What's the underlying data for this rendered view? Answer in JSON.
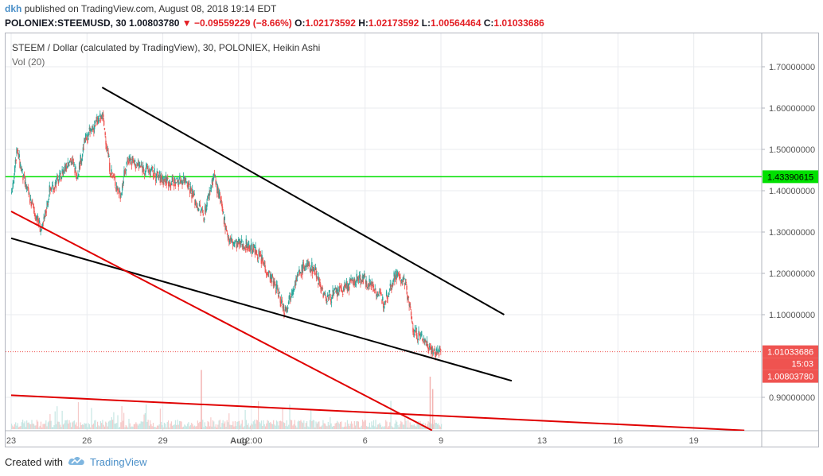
{
  "header": {
    "author": "dkh",
    "published": "published on TradingView.com, August 08, 2018 19:14 EDT",
    "symbol": "POLONIEX:STEEMUSD, 30",
    "last": "1.00803780",
    "change": "−0.09559229 (−8.66%)",
    "o_label": "O:",
    "o_value": "1.02173592",
    "h_label": "H:",
    "h_value": "1.02173592",
    "l_label": "L:",
    "l_value": "1.00564464",
    "c_label": "C:",
    "c_value": "1.01033686"
  },
  "legend": {
    "title": "STEEM / Dollar (calculated by TradingView), 30, POLONIEX, Heikin Ashi",
    "volume": "Vol (20)"
  },
  "footer": {
    "created_with": "Created with",
    "brand": "TradingView"
  },
  "colors": {
    "up": "#26a69a",
    "down": "#ef5350",
    "green_line": "#00e000",
    "red_line": "#e00000",
    "black_line": "#000000"
  },
  "chart_data": {
    "type": "candlestick",
    "style": "Heikin Ashi",
    "interval": "30",
    "ylim": [
      0.82,
      1.78
    ],
    "y_ticks": [
      "1.70000000",
      "1.60000000",
      "1.50000000",
      "1.40000000",
      "1.30000000",
      "1.20000000",
      "1.10000000",
      "0.90000000"
    ],
    "x_ticks": [
      {
        "label": "23",
        "day": 0
      },
      {
        "label": "26",
        "day": 3
      },
      {
        "label": "29",
        "day": 6
      },
      {
        "label": "Aug",
        "day": 9
      },
      {
        "label": "12:00",
        "day": 9.5
      },
      {
        "label": "6",
        "day": 14
      },
      {
        "label": "9",
        "day": 17
      },
      {
        "label": "13",
        "day": 21
      },
      {
        "label": "16",
        "day": 24
      },
      {
        "label": "19",
        "day": 27
      }
    ],
    "price_path": [
      [
        0.0,
        1.39
      ],
      [
        0.2,
        1.5
      ],
      [
        0.5,
        1.42
      ],
      [
        0.9,
        1.35
      ],
      [
        1.2,
        1.3
      ],
      [
        1.5,
        1.4
      ],
      [
        1.9,
        1.43
      ],
      [
        2.3,
        1.48
      ],
      [
        2.6,
        1.44
      ],
      [
        2.9,
        1.52
      ],
      [
        3.3,
        1.56
      ],
      [
        3.6,
        1.58
      ],
      [
        3.9,
        1.45
      ],
      [
        4.3,
        1.39
      ],
      [
        4.6,
        1.48
      ],
      [
        5.0,
        1.46
      ],
      [
        5.4,
        1.45
      ],
      [
        5.9,
        1.43
      ],
      [
        6.4,
        1.42
      ],
      [
        6.9,
        1.43
      ],
      [
        7.3,
        1.37
      ],
      [
        7.6,
        1.34
      ],
      [
        8.0,
        1.44
      ],
      [
        8.3,
        1.36
      ],
      [
        8.6,
        1.28
      ],
      [
        8.9,
        1.27
      ],
      [
        9.3,
        1.27
      ],
      [
        9.7,
        1.25
      ],
      [
        10.0,
        1.22
      ],
      [
        10.5,
        1.16
      ],
      [
        10.8,
        1.11
      ],
      [
        11.2,
        1.18
      ],
      [
        11.6,
        1.22
      ],
      [
        12.0,
        1.21
      ],
      [
        12.4,
        1.14
      ],
      [
        12.8,
        1.15
      ],
      [
        13.3,
        1.17
      ],
      [
        13.8,
        1.19
      ],
      [
        14.3,
        1.17
      ],
      [
        14.7,
        1.13
      ],
      [
        15.2,
        1.2
      ],
      [
        15.6,
        1.17
      ],
      [
        15.9,
        1.06
      ],
      [
        16.3,
        1.04
      ],
      [
        16.7,
        1.01
      ],
      [
        17.0,
        1.01
      ]
    ],
    "volume_spikes": [
      {
        "day": 7.5,
        "rel": 0.62
      },
      {
        "day": 16.55,
        "rel": 0.55
      },
      {
        "day": 16.65,
        "rel": 0.42
      }
    ],
    "horizontal_lines": [
      {
        "value": 1.43390615,
        "label": "1.43390615",
        "color": "#00e000"
      },
      {
        "value": 1.01033686,
        "label": "1.01033686",
        "color": "#ef5350",
        "style": "dotted"
      }
    ],
    "price_labels": [
      {
        "value": 1.01033686,
        "text": "1.01033686"
      },
      {
        "text": "15:03"
      },
      {
        "value": 1.0080378,
        "text": "1.00803780"
      }
    ],
    "trendlines": [
      {
        "color": "#000000",
        "points": [
          [
            3.6,
            1.65
          ],
          [
            19.5,
            1.1
          ]
        ]
      },
      {
        "color": "#000000",
        "points": [
          [
            0.0,
            1.285
          ],
          [
            19.8,
            0.94
          ]
        ]
      },
      {
        "color": "#e00000",
        "points": [
          [
            0.0,
            1.35
          ],
          [
            16.65,
            0.82
          ]
        ]
      },
      {
        "color": "#e00000",
        "points": [
          [
            0.0,
            0.905
          ],
          [
            29.0,
            0.82
          ]
        ]
      }
    ]
  }
}
